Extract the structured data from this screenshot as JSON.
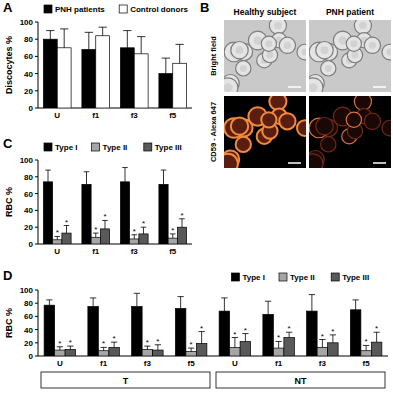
{
  "chart_data": [
    {
      "type": "bar",
      "panel_label": "A",
      "y_label": "Discocytes %",
      "categories": [
        "U",
        "f1",
        "f3",
        "f5"
      ],
      "series": [
        {
          "name": "PNH patients",
          "color": "#000000",
          "values": [
            80,
            68,
            70,
            40
          ],
          "errors": [
            10,
            20,
            20,
            18
          ]
        },
        {
          "name": "Control donors",
          "color": "#ffffff",
          "values": [
            70,
            84,
            63,
            52
          ],
          "errors": [
            22,
            10,
            20,
            22
          ]
        }
      ],
      "ylim": [
        0,
        100
      ],
      "yticks": [
        0,
        20,
        40,
        60,
        80,
        100
      ],
      "legend": "top-left"
    },
    {
      "type": "bar",
      "panel_label": "C",
      "y_label": "RBC %",
      "categories": [
        "U",
        "f1",
        "f3",
        "f5"
      ],
      "series": [
        {
          "name": "Type I",
          "color": "#000000",
          "values": [
            74,
            71,
            74,
            71
          ],
          "errors": [
            14,
            15,
            17,
            17
          ],
          "annotations": [
            null,
            null,
            null,
            null
          ]
        },
        {
          "name": "Type II",
          "color": "#a6a6a6",
          "values": [
            5,
            8,
            6,
            7
          ],
          "errors": [
            4,
            5,
            5,
            5
          ],
          "annotations": [
            "*",
            "*",
            "*",
            "*"
          ]
        },
        {
          "name": "Type III",
          "color": "#595959",
          "values": [
            13,
            18,
            12,
            20
          ],
          "errors": [
            9,
            10,
            8,
            10
          ],
          "annotations": [
            "*",
            "*",
            "*",
            "*"
          ]
        }
      ],
      "ylim": [
        0,
        100
      ],
      "yticks": [
        0,
        20,
        40,
        60,
        80,
        100
      ],
      "legend": "top-left"
    },
    {
      "type": "bar",
      "panel_label": "D",
      "y_label": "RBC %",
      "categories": [
        "U",
        "f1",
        "f3",
        "f5",
        "U",
        "f1",
        "f3",
        "f5"
      ],
      "group_labels": [
        "T",
        "NT"
      ],
      "series": [
        {
          "name": "Type I",
          "color": "#000000",
          "values": [
            77,
            75,
            75,
            72,
            68,
            63,
            68,
            70
          ],
          "errors": [
            8,
            13,
            20,
            18,
            20,
            20,
            25,
            15
          ],
          "annotations": [
            null,
            null,
            null,
            null,
            null,
            null,
            null,
            null
          ]
        },
        {
          "name": "Type II",
          "color": "#a6a6a6",
          "values": [
            9,
            8,
            10,
            7,
            13,
            12,
            13,
            8
          ],
          "errors": [
            5,
            5,
            5,
            5,
            15,
            10,
            12,
            8
          ],
          "annotations": [
            "*",
            "*",
            "*",
            "*",
            "*",
            "*",
            "*",
            "*"
          ]
        },
        {
          "name": "Type III",
          "color": "#595959",
          "values": [
            10,
            13,
            9,
            19,
            22,
            28,
            20,
            21
          ],
          "errors": [
            5,
            8,
            8,
            18,
            12,
            8,
            12,
            15
          ],
          "annotations": [
            "*",
            "*",
            "*",
            "*",
            "*",
            "*",
            "*",
            "*"
          ]
        }
      ],
      "ylim": [
        0,
        100
      ],
      "yticks": [
        0,
        20,
        40,
        60,
        80,
        100
      ],
      "legend": "top-right"
    }
  ],
  "image_panel": {
    "panel_label": "B",
    "columns": [
      "Healthy subject",
      "PNH patient"
    ],
    "rows": [
      "Bright field",
      "CD59 - Alexa 647"
    ]
  }
}
